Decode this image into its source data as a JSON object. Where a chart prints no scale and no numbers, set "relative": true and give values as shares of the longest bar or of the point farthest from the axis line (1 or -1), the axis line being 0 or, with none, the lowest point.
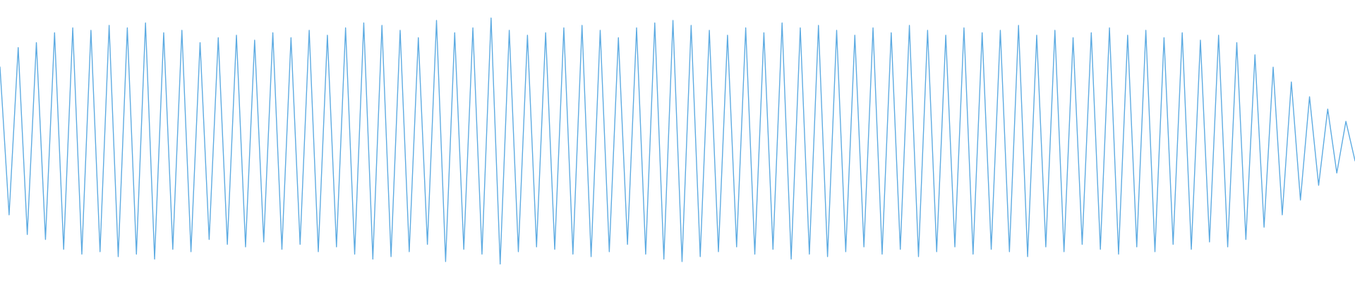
{
  "chart_data": {
    "type": "line",
    "relative": true,
    "line_style": "solid",
    "categories": [
      null,
      null,
      null,
      null,
      null,
      null,
      null,
      null,
      null,
      null,
      null,
      null,
      null,
      null,
      null,
      null,
      null,
      null,
      null,
      null,
      null,
      null,
      null,
      null,
      null,
      null,
      null,
      null,
      null,
      null,
      null,
      null,
      null,
      null,
      null,
      null,
      null,
      null,
      null,
      null,
      null,
      null,
      null,
      null,
      null,
      null,
      null,
      null,
      null,
      null,
      null,
      null,
      null,
      null,
      null,
      null,
      null,
      null,
      null,
      null,
      null,
      null,
      null,
      null,
      null,
      null,
      null,
      null,
      null,
      null,
      null,
      null,
      null,
      null,
      null,
      null,
      null,
      null,
      null,
      null,
      null,
      null,
      null,
      null,
      null,
      null,
      null,
      null,
      null,
      null,
      null,
      null,
      null,
      null,
      null,
      null,
      null,
      null,
      null,
      null,
      null,
      null,
      null,
      null,
      null,
      null,
      null,
      null,
      null,
      null,
      null,
      null,
      null,
      null,
      null,
      null,
      null,
      null,
      null,
      null,
      null,
      null,
      null,
      null,
      null,
      null,
      null,
      null,
      null,
      null,
      null,
      null,
      null,
      null,
      null,
      null,
      null,
      null,
      null,
      null,
      null,
      null,
      null,
      null,
      null,
      null,
      null,
      null,
      null,
      null
    ],
    "series": [
      {
        "color": "#5dabe2",
        "values": [
          0.8,
          0.2,
          0.88,
          0.12,
          0.9,
          0.1,
          0.94,
          0.06,
          0.96,
          0.04,
          0.95,
          0.05,
          0.97,
          0.03,
          0.96,
          0.04,
          0.98,
          0.02,
          0.94,
          0.06,
          0.95,
          0.05,
          0.9,
          0.1,
          0.92,
          0.08,
          0.93,
          0.07,
          0.91,
          0.09,
          0.94,
          0.06,
          0.92,
          0.08,
          0.95,
          0.05,
          0.93,
          0.07,
          0.96,
          0.04,
          0.98,
          0.02,
          0.97,
          0.03,
          0.95,
          0.05,
          0.92,
          0.08,
          0.99,
          0.01,
          0.94,
          0.06,
          0.96,
          0.04,
          1.0,
          0.0,
          0.95,
          0.05,
          0.93,
          0.07,
          0.94,
          0.06,
          0.96,
          0.04,
          0.97,
          0.03,
          0.95,
          0.05,
          0.92,
          0.08,
          0.96,
          0.04,
          0.98,
          0.02,
          0.99,
          0.01,
          0.97,
          0.03,
          0.95,
          0.05,
          0.93,
          0.07,
          0.96,
          0.04,
          0.94,
          0.06,
          0.98,
          0.02,
          0.96,
          0.04,
          0.97,
          0.03,
          0.95,
          0.05,
          0.93,
          0.07,
          0.96,
          0.04,
          0.94,
          0.06,
          0.97,
          0.03,
          0.95,
          0.05,
          0.93,
          0.07,
          0.96,
          0.04,
          0.94,
          0.06,
          0.95,
          0.05,
          0.97,
          0.03,
          0.93,
          0.07,
          0.95,
          0.05,
          0.92,
          0.08,
          0.94,
          0.06,
          0.96,
          0.04,
          0.93,
          0.07,
          0.95,
          0.05,
          0.92,
          0.08,
          0.94,
          0.06,
          0.91,
          0.09,
          0.93,
          0.07,
          0.9,
          0.1,
          0.85,
          0.15,
          0.8,
          0.2,
          0.74,
          0.26,
          0.68,
          0.32,
          0.63,
          0.37,
          0.58,
          0.42
        ]
      }
    ]
  }
}
